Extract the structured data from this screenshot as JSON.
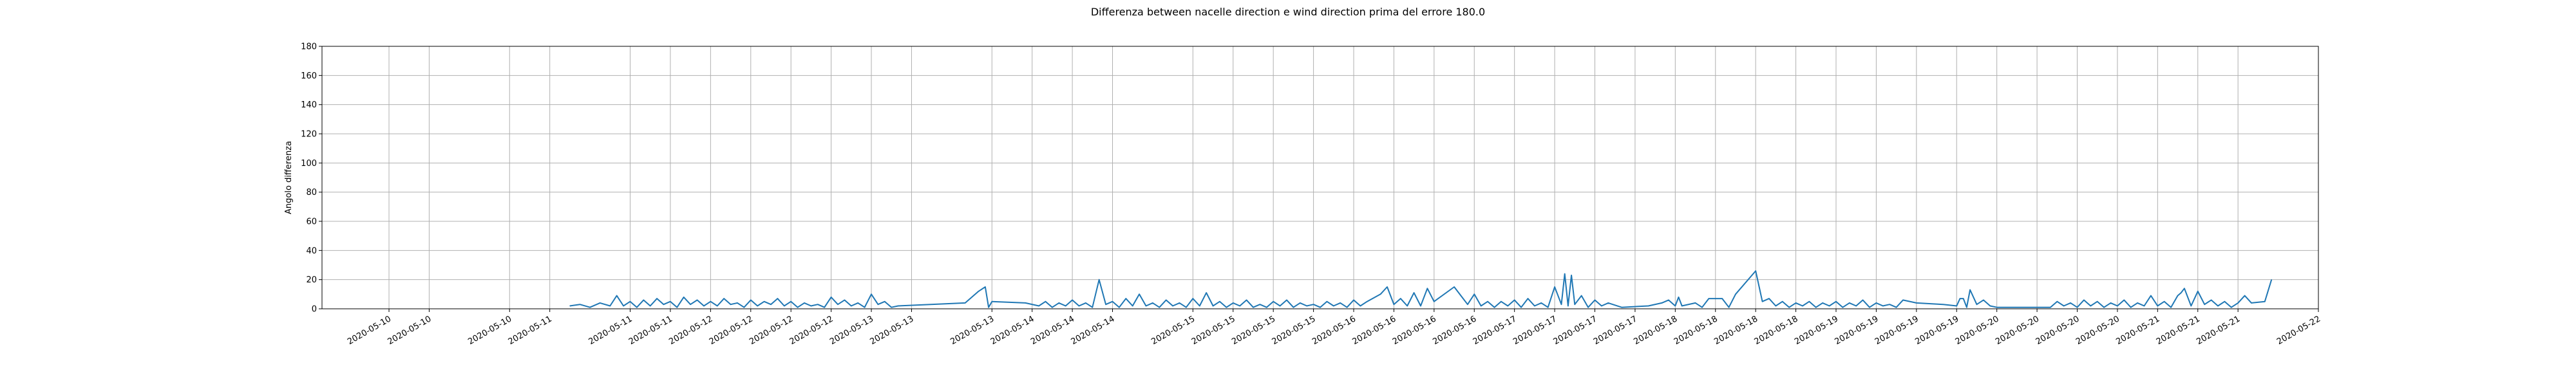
{
  "chart_data": {
    "type": "line",
    "title": "Differenza between nacelle direction e wind direction prima del errore 180.0",
    "xlabel": "",
    "ylabel": "Angolo differenza",
    "ylim": [
      0,
      180
    ],
    "yticks": [
      0,
      20,
      40,
      60,
      80,
      100,
      120,
      140,
      160,
      180
    ],
    "xlim": [
      "2020-05-09 14:00",
      "2020-05-22 00:00"
    ],
    "xticks": [
      {
        "t": "2020-05-10 00:00",
        "label": "2020-05-10"
      },
      {
        "t": "2020-05-10 06:00",
        "label": "2020-05-10"
      },
      {
        "t": "2020-05-10 18:00",
        "label": "2020-05-10"
      },
      {
        "t": "2020-05-11 00:00",
        "label": "2020-05-11"
      },
      {
        "t": "2020-05-11 12:00",
        "label": "2020-05-11"
      },
      {
        "t": "2020-05-11 18:00",
        "label": "2020-05-11"
      },
      {
        "t": "2020-05-12 00:00",
        "label": "2020-05-12"
      },
      {
        "t": "2020-05-12 06:00",
        "label": "2020-05-12"
      },
      {
        "t": "2020-05-12 12:00",
        "label": "2020-05-12"
      },
      {
        "t": "2020-05-12 18:00",
        "label": "2020-05-12"
      },
      {
        "t": "2020-05-13 00:00",
        "label": "2020-05-13"
      },
      {
        "t": "2020-05-13 06:00",
        "label": "2020-05-13"
      },
      {
        "t": "2020-05-13 18:00",
        "label": "2020-05-13"
      },
      {
        "t": "2020-05-14 00:00",
        "label": "2020-05-14"
      },
      {
        "t": "2020-05-14 06:00",
        "label": "2020-05-14"
      },
      {
        "t": "2020-05-14 12:00",
        "label": "2020-05-14"
      },
      {
        "t": "2020-05-15 00:00",
        "label": "2020-05-15"
      },
      {
        "t": "2020-05-15 06:00",
        "label": "2020-05-15"
      },
      {
        "t": "2020-05-15 12:00",
        "label": "2020-05-15"
      },
      {
        "t": "2020-05-15 18:00",
        "label": "2020-05-15"
      },
      {
        "t": "2020-05-16 00:00",
        "label": "2020-05-16"
      },
      {
        "t": "2020-05-16 06:00",
        "label": "2020-05-16"
      },
      {
        "t": "2020-05-16 12:00",
        "label": "2020-05-16"
      },
      {
        "t": "2020-05-16 18:00",
        "label": "2020-05-16"
      },
      {
        "t": "2020-05-17 00:00",
        "label": "2020-05-17"
      },
      {
        "t": "2020-05-17 06:00",
        "label": "2020-05-17"
      },
      {
        "t": "2020-05-17 12:00",
        "label": "2020-05-17"
      },
      {
        "t": "2020-05-17 18:00",
        "label": "2020-05-17"
      },
      {
        "t": "2020-05-18 00:00",
        "label": "2020-05-18"
      },
      {
        "t": "2020-05-18 06:00",
        "label": "2020-05-18"
      },
      {
        "t": "2020-05-18 12:00",
        "label": "2020-05-18"
      },
      {
        "t": "2020-05-18 18:00",
        "label": "2020-05-18"
      },
      {
        "t": "2020-05-19 00:00",
        "label": "2020-05-19"
      },
      {
        "t": "2020-05-19 06:00",
        "label": "2020-05-19"
      },
      {
        "t": "2020-05-19 12:00",
        "label": "2020-05-19"
      },
      {
        "t": "2020-05-19 18:00",
        "label": "2020-05-19"
      },
      {
        "t": "2020-05-20 00:00",
        "label": "2020-05-20"
      },
      {
        "t": "2020-05-20 06:00",
        "label": "2020-05-20"
      },
      {
        "t": "2020-05-20 12:00",
        "label": "2020-05-20"
      },
      {
        "t": "2020-05-20 18:00",
        "label": "2020-05-20"
      },
      {
        "t": "2020-05-21 00:00",
        "label": "2020-05-21"
      },
      {
        "t": "2020-05-21 06:00",
        "label": "2020-05-21"
      },
      {
        "t": "2020-05-21 12:00",
        "label": "2020-05-21"
      },
      {
        "t": "2020-05-22 00:00",
        "label": "2020-05-22"
      }
    ],
    "grid": true,
    "series": [
      {
        "color": "#1f77b4",
        "points": [
          [
            "2020-05-11 03:00",
            2
          ],
          [
            "2020-05-11 04:30",
            3
          ],
          [
            "2020-05-11 06:00",
            1
          ],
          [
            "2020-05-11 07:30",
            4
          ],
          [
            "2020-05-11 09:00",
            2
          ],
          [
            "2020-05-11 10:00",
            9
          ],
          [
            "2020-05-11 11:00",
            2
          ],
          [
            "2020-05-11 12:00",
            5
          ],
          [
            "2020-05-11 13:00",
            1
          ],
          [
            "2020-05-11 14:00",
            6
          ],
          [
            "2020-05-11 15:00",
            2
          ],
          [
            "2020-05-11 16:00",
            7
          ],
          [
            "2020-05-11 17:00",
            3
          ],
          [
            "2020-05-11 18:00",
            5
          ],
          [
            "2020-05-11 19:00",
            1
          ],
          [
            "2020-05-11 20:00",
            8
          ],
          [
            "2020-05-11 21:00",
            3
          ],
          [
            "2020-05-11 22:00",
            6
          ],
          [
            "2020-05-11 23:00",
            2
          ],
          [
            "2020-05-12 00:00",
            5
          ],
          [
            "2020-05-12 01:00",
            2
          ],
          [
            "2020-05-12 02:00",
            7
          ],
          [
            "2020-05-12 03:00",
            3
          ],
          [
            "2020-05-12 04:00",
            4
          ],
          [
            "2020-05-12 05:00",
            1
          ],
          [
            "2020-05-12 06:00",
            6
          ],
          [
            "2020-05-12 07:00",
            2
          ],
          [
            "2020-05-12 08:00",
            5
          ],
          [
            "2020-05-12 09:00",
            3
          ],
          [
            "2020-05-12 10:00",
            7
          ],
          [
            "2020-05-12 11:00",
            2
          ],
          [
            "2020-05-12 12:00",
            5
          ],
          [
            "2020-05-12 13:00",
            1
          ],
          [
            "2020-05-12 14:00",
            4
          ],
          [
            "2020-05-12 15:00",
            2
          ],
          [
            "2020-05-12 16:00",
            3
          ],
          [
            "2020-05-12 17:00",
            1
          ],
          [
            "2020-05-12 18:00",
            8
          ],
          [
            "2020-05-12 19:00",
            3
          ],
          [
            "2020-05-12 20:00",
            6
          ],
          [
            "2020-05-12 21:00",
            2
          ],
          [
            "2020-05-12 22:00",
            4
          ],
          [
            "2020-05-12 23:00",
            1
          ],
          [
            "2020-05-13 00:00",
            10
          ],
          [
            "2020-05-13 01:00",
            3
          ],
          [
            "2020-05-13 02:00",
            5
          ],
          [
            "2020-05-13 03:00",
            1
          ],
          [
            "2020-05-13 04:00",
            2
          ],
          [
            "2020-05-13 14:00",
            4
          ],
          [
            "2020-05-13 16:00",
            12
          ],
          [
            "2020-05-13 17:00",
            15
          ],
          [
            "2020-05-13 17:30",
            1
          ],
          [
            "2020-05-13 18:00",
            5
          ],
          [
            "2020-05-13 23:00",
            4
          ],
          [
            "2020-05-14 01:00",
            2
          ],
          [
            "2020-05-14 02:00",
            5
          ],
          [
            "2020-05-14 03:00",
            1
          ],
          [
            "2020-05-14 04:00",
            4
          ],
          [
            "2020-05-14 05:00",
            2
          ],
          [
            "2020-05-14 06:00",
            6
          ],
          [
            "2020-05-14 07:00",
            2
          ],
          [
            "2020-05-14 08:00",
            4
          ],
          [
            "2020-05-14 09:00",
            1
          ],
          [
            "2020-05-14 10:00",
            20
          ],
          [
            "2020-05-14 11:00",
            3
          ],
          [
            "2020-05-14 12:00",
            5
          ],
          [
            "2020-05-14 13:00",
            1
          ],
          [
            "2020-05-14 14:00",
            7
          ],
          [
            "2020-05-14 15:00",
            2
          ],
          [
            "2020-05-14 16:00",
            10
          ],
          [
            "2020-05-14 17:00",
            2
          ],
          [
            "2020-05-14 18:00",
            4
          ],
          [
            "2020-05-14 19:00",
            1
          ],
          [
            "2020-05-14 20:00",
            6
          ],
          [
            "2020-05-14 21:00",
            2
          ],
          [
            "2020-05-14 22:00",
            4
          ],
          [
            "2020-05-14 23:00",
            1
          ],
          [
            "2020-05-15 00:00",
            7
          ],
          [
            "2020-05-15 01:00",
            2
          ],
          [
            "2020-05-15 02:00",
            11
          ],
          [
            "2020-05-15 03:00",
            2
          ],
          [
            "2020-05-15 04:00",
            5
          ],
          [
            "2020-05-15 05:00",
            1
          ],
          [
            "2020-05-15 06:00",
            4
          ],
          [
            "2020-05-15 07:00",
            2
          ],
          [
            "2020-05-15 08:00",
            6
          ],
          [
            "2020-05-15 09:00",
            1
          ],
          [
            "2020-05-15 10:00",
            3
          ],
          [
            "2020-05-15 11:00",
            1
          ],
          [
            "2020-05-15 12:00",
            5
          ],
          [
            "2020-05-15 13:00",
            2
          ],
          [
            "2020-05-15 14:00",
            6
          ],
          [
            "2020-05-15 15:00",
            1
          ],
          [
            "2020-05-15 16:00",
            4
          ],
          [
            "2020-05-15 17:00",
            2
          ],
          [
            "2020-05-15 18:00",
            3
          ],
          [
            "2020-05-15 19:00",
            1
          ],
          [
            "2020-05-15 20:00",
            5
          ],
          [
            "2020-05-15 21:00",
            2
          ],
          [
            "2020-05-15 22:00",
            4
          ],
          [
            "2020-05-15 23:00",
            1
          ],
          [
            "2020-05-16 00:00",
            6
          ],
          [
            "2020-05-16 01:00",
            2
          ],
          [
            "2020-05-16 02:00",
            5
          ],
          [
            "2020-05-16 04:00",
            10
          ],
          [
            "2020-05-16 05:00",
            15
          ],
          [
            "2020-05-16 06:00",
            3
          ],
          [
            "2020-05-16 07:00",
            7
          ],
          [
            "2020-05-16 08:00",
            2
          ],
          [
            "2020-05-16 09:00",
            11
          ],
          [
            "2020-05-16 10:00",
            2
          ],
          [
            "2020-05-16 11:00",
            14
          ],
          [
            "2020-05-16 12:00",
            5
          ],
          [
            "2020-05-16 15:00",
            15
          ],
          [
            "2020-05-16 16:00",
            9
          ],
          [
            "2020-05-16 17:00",
            3
          ],
          [
            "2020-05-16 18:00",
            10
          ],
          [
            "2020-05-16 19:00",
            2
          ],
          [
            "2020-05-16 20:00",
            5
          ],
          [
            "2020-05-16 21:00",
            1
          ],
          [
            "2020-05-16 22:00",
            5
          ],
          [
            "2020-05-16 23:00",
            2
          ],
          [
            "2020-05-17 00:00",
            6
          ],
          [
            "2020-05-17 01:00",
            1
          ],
          [
            "2020-05-17 02:00",
            7
          ],
          [
            "2020-05-17 03:00",
            2
          ],
          [
            "2020-05-17 04:00",
            4
          ],
          [
            "2020-05-17 05:00",
            1
          ],
          [
            "2020-05-17 06:00",
            15
          ],
          [
            "2020-05-17 07:00",
            3
          ],
          [
            "2020-05-17 07:30",
            24
          ],
          [
            "2020-05-17 08:00",
            2
          ],
          [
            "2020-05-17 08:30",
            23
          ],
          [
            "2020-05-17 09:00",
            3
          ],
          [
            "2020-05-17 10:00",
            9
          ],
          [
            "2020-05-17 11:00",
            1
          ],
          [
            "2020-05-17 12:00",
            6
          ],
          [
            "2020-05-17 13:00",
            2
          ],
          [
            "2020-05-17 14:00",
            4
          ],
          [
            "2020-05-17 16:00",
            1
          ],
          [
            "2020-05-17 20:00",
            2
          ],
          [
            "2020-05-17 22:00",
            4
          ],
          [
            "2020-05-17 23:00",
            6
          ],
          [
            "2020-05-18 00:00",
            2
          ],
          [
            "2020-05-18 00:30",
            8
          ],
          [
            "2020-05-18 01:00",
            2
          ],
          [
            "2020-05-18 03:00",
            4
          ],
          [
            "2020-05-18 04:00",
            1
          ],
          [
            "2020-05-18 05:00",
            7
          ],
          [
            "2020-05-18 07:00",
            7
          ],
          [
            "2020-05-18 08:00",
            1
          ],
          [
            "2020-05-18 09:00",
            10
          ],
          [
            "2020-05-18 12:00",
            26
          ],
          [
            "2020-05-18 13:00",
            5
          ],
          [
            "2020-05-18 14:00",
            7
          ],
          [
            "2020-05-18 15:00",
            2
          ],
          [
            "2020-05-18 16:00",
            5
          ],
          [
            "2020-05-18 17:00",
            1
          ],
          [
            "2020-05-18 18:00",
            4
          ],
          [
            "2020-05-18 19:00",
            2
          ],
          [
            "2020-05-18 20:00",
            5
          ],
          [
            "2020-05-18 21:00",
            1
          ],
          [
            "2020-05-18 22:00",
            4
          ],
          [
            "2020-05-18 23:00",
            2
          ],
          [
            "2020-05-19 00:00",
            5
          ],
          [
            "2020-05-19 01:00",
            1
          ],
          [
            "2020-05-19 02:00",
            4
          ],
          [
            "2020-05-19 03:00",
            2
          ],
          [
            "2020-05-19 04:00",
            6
          ],
          [
            "2020-05-19 05:00",
            1
          ],
          [
            "2020-05-19 06:00",
            4
          ],
          [
            "2020-05-19 07:00",
            2
          ],
          [
            "2020-05-19 08:00",
            3
          ],
          [
            "2020-05-19 09:00",
            1
          ],
          [
            "2020-05-19 10:00",
            6
          ],
          [
            "2020-05-19 12:00",
            4
          ],
          [
            "2020-05-19 16:00",
            3
          ],
          [
            "2020-05-19 18:00",
            2
          ],
          [
            "2020-05-19 18:30",
            7
          ],
          [
            "2020-05-19 19:00",
            7
          ],
          [
            "2020-05-19 19:30",
            1
          ],
          [
            "2020-05-19 20:00",
            13
          ],
          [
            "2020-05-19 21:00",
            3
          ],
          [
            "2020-05-19 22:00",
            6
          ],
          [
            "2020-05-19 23:00",
            2
          ],
          [
            "2020-05-20 00:00",
            1
          ],
          [
            "2020-05-20 08:00",
            1
          ],
          [
            "2020-05-20 09:00",
            5
          ],
          [
            "2020-05-20 10:00",
            2
          ],
          [
            "2020-05-20 11:00",
            4
          ],
          [
            "2020-05-20 12:00",
            1
          ],
          [
            "2020-05-20 13:00",
            6
          ],
          [
            "2020-05-20 14:00",
            2
          ],
          [
            "2020-05-20 15:00",
            5
          ],
          [
            "2020-05-20 16:00",
            1
          ],
          [
            "2020-05-20 17:00",
            4
          ],
          [
            "2020-05-20 18:00",
            2
          ],
          [
            "2020-05-20 19:00",
            6
          ],
          [
            "2020-05-20 20:00",
            1
          ],
          [
            "2020-05-20 21:00",
            4
          ],
          [
            "2020-05-20 22:00",
            2
          ],
          [
            "2020-05-20 23:00",
            9
          ],
          [
            "2020-05-21 00:00",
            2
          ],
          [
            "2020-05-21 01:00",
            5
          ],
          [
            "2020-05-21 02:00",
            1
          ],
          [
            "2020-05-21 03:00",
            9
          ],
          [
            "2020-05-21 03:30",
            11
          ],
          [
            "2020-05-21 04:00",
            14
          ],
          [
            "2020-05-21 05:00",
            2
          ],
          [
            "2020-05-21 06:00",
            12
          ],
          [
            "2020-05-21 07:00",
            3
          ],
          [
            "2020-05-21 08:00",
            6
          ],
          [
            "2020-05-21 09:00",
            2
          ],
          [
            "2020-05-21 10:00",
            5
          ],
          [
            "2020-05-21 11:00",
            1
          ],
          [
            "2020-05-21 12:00",
            4
          ],
          [
            "2020-05-21 13:00",
            9
          ],
          [
            "2020-05-21 14:00",
            4
          ],
          [
            "2020-05-21 16:00",
            5
          ],
          [
            "2020-05-21 17:00",
            20
          ]
        ]
      }
    ]
  }
}
